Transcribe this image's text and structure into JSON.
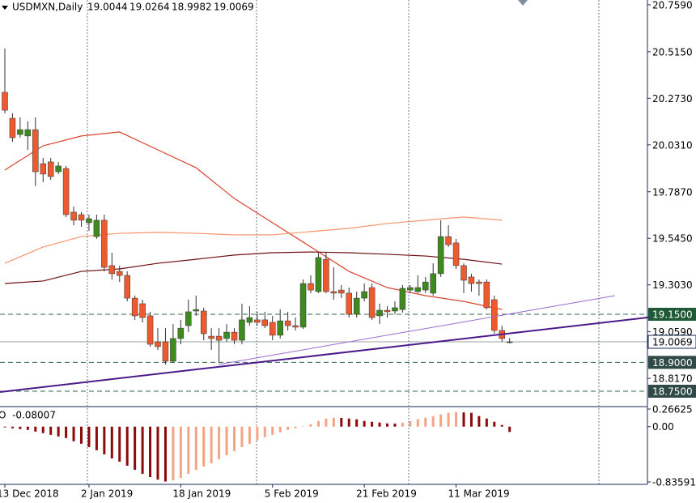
{
  "chart_data": {
    "type": "candlestick",
    "symbol": "USDMXN,Daily",
    "up_color": "#3f8a1f",
    "down_color": "#ee5a2f",
    "wick_color": "#333333",
    "ylim": [
      18.67,
      20.784
    ],
    "yticks": [
      {
        "value": 20.759,
        "label": "20.7590"
      },
      {
        "value": 20.515,
        "label": "20.5150"
      },
      {
        "value": 20.273,
        "label": "20.2730"
      },
      {
        "value": 20.031,
        "label": "20.0310"
      },
      {
        "value": 19.787,
        "label": "19.7870"
      },
      {
        "value": 19.545,
        "label": "19.5450"
      },
      {
        "value": 19.303,
        "label": "19.3030"
      },
      {
        "value": 19.059,
        "label": "19.0590"
      },
      {
        "value": 18.817,
        "label": "18.8170"
      }
    ],
    "xticks": [
      {
        "value": 0,
        "label": "13 Dec 2018"
      },
      {
        "value": 11,
        "label": "2 Jan 2019"
      },
      {
        "value": 23,
        "label": "18 Jan 2019"
      },
      {
        "value": 35,
        "label": "5 Feb 2019"
      },
      {
        "value": 47,
        "label": "21 Feb 2019"
      },
      {
        "value": 59,
        "label": "11 Mar 2019"
      }
    ],
    "candles": [
      [
        20.304,
        20.532,
        20.195,
        20.211
      ],
      [
        20.169,
        20.195,
        20.047,
        20.068
      ],
      [
        20.085,
        20.174,
        20.068,
        20.11
      ],
      [
        20.077,
        20.153,
        20.005,
        20.11
      ],
      [
        20.11,
        20.174,
        19.816,
        19.891
      ],
      [
        19.933,
        19.963,
        19.837,
        19.879
      ],
      [
        19.942,
        19.963,
        19.849,
        19.866
      ],
      [
        19.891,
        19.942,
        19.879,
        19.921
      ],
      [
        19.908,
        19.921,
        19.655,
        19.668
      ],
      [
        19.681,
        19.71,
        19.613,
        19.639
      ],
      [
        19.668,
        19.681,
        19.605,
        19.639
      ],
      [
        19.626,
        19.668,
        19.584,
        19.647
      ],
      [
        19.554,
        19.668,
        19.542,
        19.639
      ],
      [
        19.639,
        19.668,
        19.373,
        19.394
      ],
      [
        19.403,
        19.47,
        19.331,
        19.361
      ],
      [
        19.373,
        19.403,
        19.318,
        19.352
      ],
      [
        19.352,
        19.373,
        19.217,
        19.234
      ],
      [
        19.234,
        19.247,
        19.121,
        19.142
      ],
      [
        19.205,
        19.226,
        19.108,
        19.133
      ],
      [
        19.142,
        19.163,
        18.982,
        18.994
      ],
      [
        19.007,
        19.078,
        18.965,
        18.982
      ],
      [
        19.007,
        19.078,
        18.889,
        18.906
      ],
      [
        18.906,
        19.099,
        18.897,
        19.024
      ],
      [
        19.024,
        19.121,
        18.994,
        19.078
      ],
      [
        19.091,
        19.226,
        19.057,
        19.163
      ],
      [
        19.167,
        19.247,
        19.142,
        19.175
      ],
      [
        19.167,
        19.184,
        19.015,
        19.049
      ],
      [
        19.036,
        19.078,
        18.965,
        19.024
      ],
      [
        19.036,
        19.078,
        18.897,
        19.015
      ],
      [
        19.024,
        19.099,
        19.007,
        19.057
      ],
      [
        19.057,
        19.078,
        18.994,
        19.015
      ],
      [
        19.015,
        19.205,
        18.994,
        19.121
      ],
      [
        19.108,
        19.192,
        19.091,
        19.133
      ],
      [
        19.121,
        19.163,
        19.091,
        19.108
      ],
      [
        19.121,
        19.163,
        19.078,
        19.091
      ],
      [
        19.108,
        19.142,
        19.015,
        19.041
      ],
      [
        19.041,
        19.175,
        19.024,
        19.116
      ],
      [
        19.116,
        19.163,
        19.066,
        19.091
      ],
      [
        19.091,
        19.133,
        19.066,
        19.083
      ],
      [
        19.083,
        19.331,
        19.074,
        19.31
      ],
      [
        19.31,
        19.352,
        19.26,
        19.276
      ],
      [
        19.268,
        19.47,
        19.26,
        19.445
      ],
      [
        19.436,
        19.47,
        19.26,
        19.268
      ],
      [
        19.268,
        19.394,
        19.226,
        19.26
      ],
      [
        19.276,
        19.302,
        19.234,
        19.26
      ],
      [
        19.26,
        19.289,
        19.133,
        19.15
      ],
      [
        19.15,
        19.268,
        19.133,
        19.234
      ],
      [
        19.234,
        19.31,
        19.217,
        19.268
      ],
      [
        19.289,
        19.31,
        19.121,
        19.133
      ],
      [
        19.142,
        19.205,
        19.099,
        19.171
      ],
      [
        19.171,
        19.192,
        19.133,
        19.163
      ],
      [
        19.167,
        19.217,
        19.15,
        19.184
      ],
      [
        19.175,
        19.302,
        19.158,
        19.285
      ],
      [
        19.276,
        19.302,
        19.26,
        19.289
      ],
      [
        19.268,
        19.352,
        19.26,
        19.289
      ],
      [
        19.276,
        19.344,
        19.26,
        19.318
      ],
      [
        19.26,
        19.415,
        19.247,
        19.361
      ],
      [
        19.361,
        19.639,
        19.344,
        19.554
      ],
      [
        19.554,
        19.613,
        19.5,
        19.512
      ],
      [
        19.521,
        19.542,
        19.386,
        19.403
      ],
      [
        19.403,
        19.415,
        19.26,
        19.327
      ],
      [
        19.344,
        19.361,
        19.268,
        19.31
      ],
      [
        19.318,
        19.331,
        19.247,
        19.31
      ],
      [
        19.318,
        19.331,
        19.175,
        19.184
      ],
      [
        19.226,
        19.247,
        19.049,
        19.066
      ],
      [
        19.066,
        19.091,
        19.007,
        19.024
      ],
      [
        19.0044,
        19.0264,
        18.9982,
        19.0069
      ]
    ],
    "ma_x": [
      0,
      5,
      10,
      15,
      20,
      25,
      30,
      35,
      40,
      45,
      50,
      55,
      60,
      65
    ],
    "moving_averages": [
      {
        "color": "#d9432f",
        "values": [
          19.9,
          20.026,
          20.077,
          20.098,
          20.005,
          19.912,
          19.752,
          19.626,
          19.5,
          19.373,
          19.289,
          19.247,
          19.217,
          19.175
        ]
      },
      {
        "color": "#f5956a",
        "values": [
          19.415,
          19.5,
          19.554,
          19.571,
          19.576,
          19.571,
          19.563,
          19.563,
          19.58,
          19.597,
          19.622,
          19.639,
          19.656,
          19.639
        ]
      },
      {
        "color": "#6e0f0f",
        "values": [
          19.31,
          19.323,
          19.373,
          19.386,
          19.415,
          19.436,
          19.458,
          19.47,
          19.474,
          19.47,
          19.462,
          19.453,
          19.436,
          19.411
        ]
      }
    ],
    "levels": [
      {
        "value": 19.15,
        "label": "19.1500",
        "color": "#1f5a36"
      },
      {
        "value": 18.9,
        "label": "18.9000",
        "color": "#2f4a46"
      },
      {
        "value": 18.75,
        "label": "18.7500",
        "color": "#2f4a46"
      }
    ],
    "ao": {
      "name": "AO",
      "up_color": "#f5a384",
      "down_color": "#8b0a0a",
      "ylim": [
        -0.83591,
        0.26625
      ],
      "yticks": [
        0.26625,
        {
          "value": 0,
          "label": "0.00"
        },
        -0.83591
      ],
      "values": [
        -0.012,
        -0.025,
        -0.037,
        -0.049,
        -0.074,
        -0.098,
        -0.123,
        -0.148,
        -0.172,
        -0.221,
        -0.258,
        -0.308,
        -0.357,
        -0.418,
        -0.48,
        -0.529,
        -0.59,
        -0.652,
        -0.713,
        -0.763,
        -0.8,
        -0.83,
        -0.812,
        -0.775,
        -0.713,
        -0.652,
        -0.603,
        -0.554,
        -0.492,
        -0.431,
        -0.369,
        -0.308,
        -0.258,
        -0.209,
        -0.16,
        -0.123,
        -0.086,
        -0.049,
        -0.025,
        0.005,
        0.037,
        0.086,
        0.123,
        0.135,
        0.133,
        0.123,
        0.111,
        0.086,
        0.074,
        0.062,
        0.049,
        0.047,
        0.06,
        0.086,
        0.111,
        0.135,
        0.16,
        0.185,
        0.209,
        0.221,
        0.215,
        0.209,
        0.16,
        0.123,
        0.074,
        0.025,
        -0.08007
      ]
    }
  }
}
